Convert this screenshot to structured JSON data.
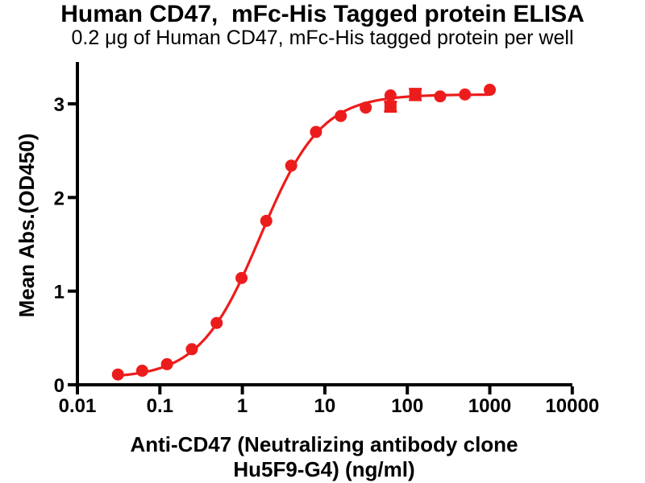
{
  "chart_data": {
    "type": "line",
    "title": "Human CD47,  mFc-His Tagged protein ELISA",
    "subtitle": "0.2 μg of Human CD47, mFc-His tagged protein per well",
    "ylabel": "Mean Abs.(OD450)",
    "xlabel_line1": "Anti-CD47 (Neutralizing antibody clone",
    "xlabel_line2": "Hu5F9-G4) (ng/ml)",
    "x_scale": "log10",
    "xlim": [
      0.01,
      10000
    ],
    "ylim": [
      0,
      3.45
    ],
    "grid": false,
    "legend": "none",
    "x_ticks": [
      0.01,
      0.1,
      1,
      10,
      100,
      1000,
      10000
    ],
    "x_tick_labels": [
      "0.01",
      "0.1",
      "1",
      "10",
      "100",
      "1000",
      "10000"
    ],
    "y_ticks": [
      0,
      1,
      2,
      3
    ],
    "y_tick_labels": [
      "0",
      "1",
      "2",
      "3"
    ],
    "series": [
      {
        "marker": "circle",
        "color": "#ED1C1C",
        "points": [
          {
            "x": 0.031,
            "y": 0.11
          },
          {
            "x": 0.061,
            "y": 0.15
          },
          {
            "x": 0.122,
            "y": 0.22
          },
          {
            "x": 0.244,
            "y": 0.38
          },
          {
            "x": 0.488,
            "y": 0.66
          },
          {
            "x": 0.977,
            "y": 1.14
          },
          {
            "x": 1.95,
            "y": 1.75
          },
          {
            "x": 3.91,
            "y": 2.34
          },
          {
            "x": 7.81,
            "y": 2.7
          },
          {
            "x": 15.6,
            "y": 2.87
          },
          {
            "x": 31.3,
            "y": 2.96
          },
          {
            "x": 62.5,
            "y": 3.09
          },
          {
            "x": 250,
            "y": 3.08
          },
          {
            "x": 500,
            "y": 3.1
          },
          {
            "x": 1000,
            "y": 3.15
          }
        ]
      },
      {
        "marker": "square",
        "color": "#ED1C1C",
        "points": [
          {
            "x": 62.5,
            "y": 2.97,
            "sd": 0.05
          },
          {
            "x": 125,
            "y": 3.1,
            "sd": 0.06
          }
        ]
      }
    ],
    "fit_curve": {
      "model": "4PL",
      "bottom": 0.07,
      "top": 3.1,
      "ec50_ng_ml": 1.65,
      "hill": 1.18,
      "x_start": 0.031,
      "x_end": 1000,
      "color": "#ED1C1C"
    },
    "colors": {
      "curve": "#ED1C1C",
      "axis": "#000000",
      "text": "#000000",
      "background": "#ffffff"
    }
  }
}
